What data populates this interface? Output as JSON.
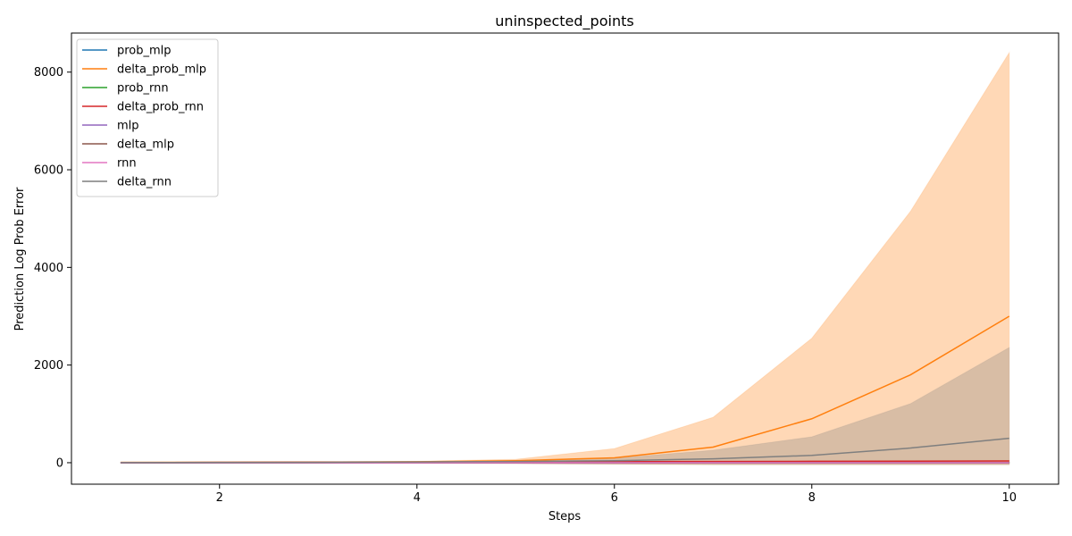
{
  "chart_data": {
    "type": "area",
    "title": "uninspected_points",
    "xlabel": "Steps",
    "ylabel": "Prediction Log Prob Error",
    "xlim": [
      0.5,
      10.5
    ],
    "ylim": [
      -440,
      8800
    ],
    "xticks": [
      2,
      4,
      6,
      8,
      10
    ],
    "yticks": [
      0,
      2000,
      4000,
      6000,
      8000
    ],
    "grid": false,
    "legend_position": "top-left",
    "x": [
      1,
      2,
      3,
      4,
      5,
      6,
      7,
      8,
      9,
      10
    ],
    "series": [
      {
        "name": "prob_mlp",
        "color": "#1f77b4",
        "values": [
          0,
          0,
          0,
          0,
          0,
          0,
          0,
          0,
          0,
          0
        ],
        "band": [
          [
            -5,
            5
          ],
          [
            -5,
            5
          ],
          [
            -5,
            5
          ],
          [
            -5,
            5
          ],
          [
            -5,
            5
          ],
          [
            -5,
            5
          ],
          [
            -5,
            5
          ],
          [
            -5,
            5
          ],
          [
            -5,
            5
          ],
          [
            -5,
            5
          ]
        ]
      },
      {
        "name": "delta_prob_mlp",
        "color": "#ff7f0e",
        "values": [
          5,
          8,
          12,
          20,
          40,
          100,
          320,
          900,
          1800,
          3000
        ],
        "band": [
          [
            -10,
            15
          ],
          [
            -10,
            20
          ],
          [
            -10,
            25
          ],
          [
            -10,
            30
          ],
          [
            -20,
            70
          ],
          [
            -30,
            290
          ],
          [
            -40,
            930
          ],
          [
            -40,
            2550
          ],
          [
            -40,
            5150
          ],
          [
            -40,
            8400
          ]
        ]
      },
      {
        "name": "prob_rnn",
        "color": "#2ca02c",
        "values": [
          0,
          0,
          0,
          0,
          0,
          0,
          0,
          0,
          0,
          0
        ],
        "band": [
          [
            -5,
            5
          ],
          [
            -5,
            5
          ],
          [
            -5,
            5
          ],
          [
            -5,
            5
          ],
          [
            -5,
            5
          ],
          [
            -5,
            5
          ],
          [
            -5,
            5
          ],
          [
            -5,
            5
          ],
          [
            -5,
            5
          ],
          [
            -5,
            5
          ]
        ]
      },
      {
        "name": "delta_prob_rnn",
        "color": "#d62728",
        "values": [
          2,
          5,
          8,
          12,
          15,
          20,
          25,
          28,
          32,
          35
        ],
        "band": [
          [
            0,
            5
          ],
          [
            2,
            8
          ],
          [
            5,
            12
          ],
          [
            8,
            16
          ],
          [
            10,
            20
          ],
          [
            15,
            25
          ],
          [
            20,
            30
          ],
          [
            22,
            34
          ],
          [
            26,
            38
          ],
          [
            30,
            40
          ]
        ]
      },
      {
        "name": "mlp",
        "color": "#9467bd",
        "values": [
          0,
          0,
          0,
          0,
          0,
          0,
          0,
          0,
          0,
          0
        ],
        "band": [
          [
            -5,
            5
          ],
          [
            -5,
            5
          ],
          [
            -5,
            5
          ],
          [
            -5,
            5
          ],
          [
            -5,
            5
          ],
          [
            -5,
            5
          ],
          [
            -5,
            5
          ],
          [
            -5,
            5
          ],
          [
            -5,
            5
          ],
          [
            -5,
            5
          ]
        ]
      },
      {
        "name": "delta_mlp",
        "color": "#8c564b",
        "values": [
          0,
          0,
          0,
          0,
          0,
          0,
          0,
          0,
          0,
          0
        ],
        "band": [
          [
            -5,
            5
          ],
          [
            -5,
            5
          ],
          [
            -5,
            5
          ],
          [
            -5,
            5
          ],
          [
            -5,
            5
          ],
          [
            -5,
            5
          ],
          [
            -5,
            5
          ],
          [
            -5,
            5
          ],
          [
            -5,
            5
          ],
          [
            -5,
            5
          ]
        ]
      },
      {
        "name": "rnn",
        "color": "#e377c2",
        "values": [
          0,
          0,
          0,
          0,
          0,
          0,
          0,
          0,
          0,
          0
        ],
        "band": [
          [
            -5,
            5
          ],
          [
            -5,
            5
          ],
          [
            -5,
            5
          ],
          [
            -5,
            5
          ],
          [
            -5,
            5
          ],
          [
            -5,
            5
          ],
          [
            -5,
            5
          ],
          [
            -5,
            5
          ],
          [
            -5,
            5
          ],
          [
            -5,
            5
          ]
        ]
      },
      {
        "name": "delta_rnn",
        "color": "#7f7f7f",
        "values": [
          2,
          5,
          8,
          15,
          25,
          40,
          80,
          150,
          300,
          500
        ],
        "band": [
          [
            -10,
            10
          ],
          [
            -10,
            10
          ],
          [
            -10,
            15
          ],
          [
            -10,
            25
          ],
          [
            -20,
            40
          ],
          [
            -30,
            90
          ],
          [
            -40,
            255
          ],
          [
            -40,
            530
          ],
          [
            -40,
            1210
          ],
          [
            -40,
            2360
          ]
        ]
      }
    ]
  }
}
